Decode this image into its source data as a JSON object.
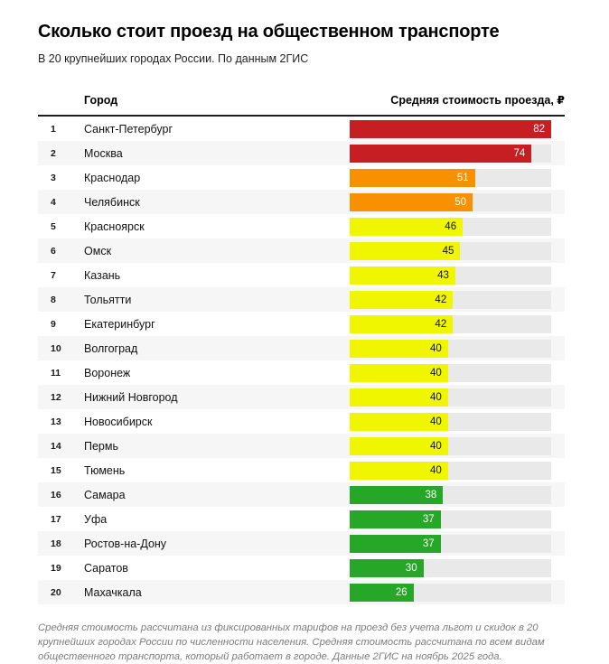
{
  "page": {
    "title": "Сколько стоит проезд на общественном транспорте",
    "subtitle": "В 20 крупнейших городах России. По данным 2ГИС",
    "footnote": "Средняя стоимость рассчитана из фиксированных тарифов на проезд без учета льгот и скидок в 20 крупнейших городах России по численности населения. Средняя стоимость рассчитана по всем видам общественного транспорта, который работает в городе. Данные 2ГИС на ноябрь 2025 года."
  },
  "table": {
    "col_city": "Город",
    "col_value": "Средняя стоимость проезда, ₽"
  },
  "colors": {
    "red": "#c51f24",
    "orange": "#f99000",
    "yellow": "#f0f500",
    "green": "#27a727",
    "track": "#e9e9e9",
    "stripe": "#f6f6f6"
  },
  "chart_data": {
    "type": "bar",
    "orientation": "horizontal",
    "title": "Сколько стоит проезд на общественном транспорте",
    "subtitle": "В 20 крупнейших городах России. По данным 2ГИС",
    "value_axis_label": "Средняя стоимость проезда, ₽",
    "category_axis_label": "Город",
    "max_value": 82,
    "value_range": [
      0,
      82
    ],
    "grid": false,
    "legend": false,
    "rows": [
      {
        "rank": 1,
        "city": "Санкт-Петербург",
        "value": 82,
        "band": "red"
      },
      {
        "rank": 2,
        "city": "Москва",
        "value": 74,
        "band": "red"
      },
      {
        "rank": 3,
        "city": "Краснодар",
        "value": 51,
        "band": "orange"
      },
      {
        "rank": 4,
        "city": "Челябинск",
        "value": 50,
        "band": "orange"
      },
      {
        "rank": 5,
        "city": "Красноярск",
        "value": 46,
        "band": "yellow"
      },
      {
        "rank": 6,
        "city": "Омск",
        "value": 45,
        "band": "yellow"
      },
      {
        "rank": 7,
        "city": "Казань",
        "value": 43,
        "band": "yellow"
      },
      {
        "rank": 8,
        "city": "Тольятти",
        "value": 42,
        "band": "yellow"
      },
      {
        "rank": 9,
        "city": "Екатеринбург",
        "value": 42,
        "band": "yellow"
      },
      {
        "rank": 10,
        "city": "Волгоград",
        "value": 40,
        "band": "yellow"
      },
      {
        "rank": 11,
        "city": "Воронеж",
        "value": 40,
        "band": "yellow"
      },
      {
        "rank": 12,
        "city": "Нижний Новгород",
        "value": 40,
        "band": "yellow"
      },
      {
        "rank": 13,
        "city": "Новосибирск",
        "value": 40,
        "band": "yellow"
      },
      {
        "rank": 14,
        "city": "Пермь",
        "value": 40,
        "band": "yellow"
      },
      {
        "rank": 15,
        "city": "Тюмень",
        "value": 40,
        "band": "yellow"
      },
      {
        "rank": 16,
        "city": "Самара",
        "value": 38,
        "band": "green"
      },
      {
        "rank": 17,
        "city": "Уфа",
        "value": 37,
        "band": "green"
      },
      {
        "rank": 18,
        "city": "Ростов-на-Дону",
        "value": 37,
        "band": "green"
      },
      {
        "rank": 19,
        "city": "Саратов",
        "value": 30,
        "band": "green"
      },
      {
        "rank": 20,
        "city": "Махачкала",
        "value": 26,
        "band": "green"
      }
    ]
  }
}
